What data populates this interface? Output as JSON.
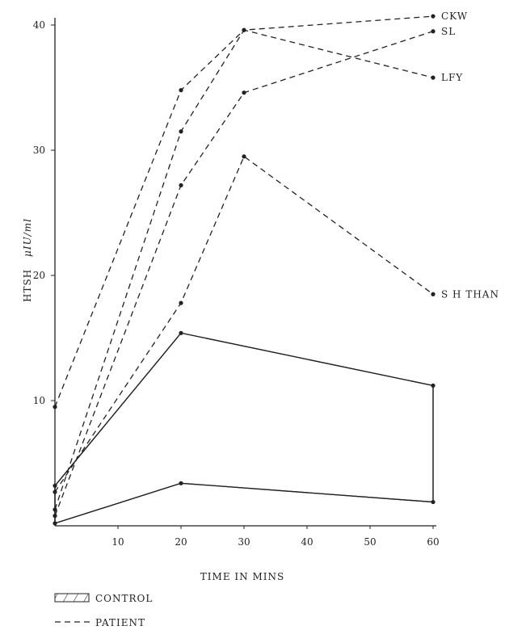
{
  "chart_data": {
    "type": "line",
    "xlabel": "TIME IN MINS",
    "ylabel": "HTSH",
    "ylabel_unit": "μIU/ml",
    "xlim": [
      0,
      60
    ],
    "ylim": [
      0,
      41
    ],
    "x_ticks": [
      10,
      20,
      30,
      40,
      50,
      60
    ],
    "y_ticks": [
      10,
      20,
      30,
      40
    ],
    "grid": false,
    "legend": {
      "position": "bottom-left",
      "items": [
        {
          "style": "hatched",
          "label": "CONTROL"
        },
        {
          "style": "dashed",
          "label": "PATIENT"
        }
      ]
    },
    "control_band": {
      "label": "CONTROL",
      "x": [
        0,
        20,
        60
      ],
      "upper": [
        3.2,
        15.4,
        11.2
      ],
      "lower": [
        0.2,
        3.4,
        1.9
      ]
    },
    "series": [
      {
        "name": "CKW",
        "x": [
          0,
          20,
          30,
          60
        ],
        "values": [
          1.3,
          31.5,
          39.6,
          40.7
        ]
      },
      {
        "name": "SL",
        "x": [
          0,
          20,
          30,
          60
        ],
        "values": [
          0.8,
          27.2,
          34.6,
          39.5
        ]
      },
      {
        "name": "LFY",
        "x": [
          0,
          20,
          30,
          60
        ],
        "values": [
          9.5,
          34.8,
          39.6,
          35.8
        ]
      },
      {
        "name": "S H THAN",
        "x": [
          0,
          20,
          30,
          60
        ],
        "values": [
          2.7,
          17.8,
          29.5,
          18.5
        ]
      }
    ]
  }
}
